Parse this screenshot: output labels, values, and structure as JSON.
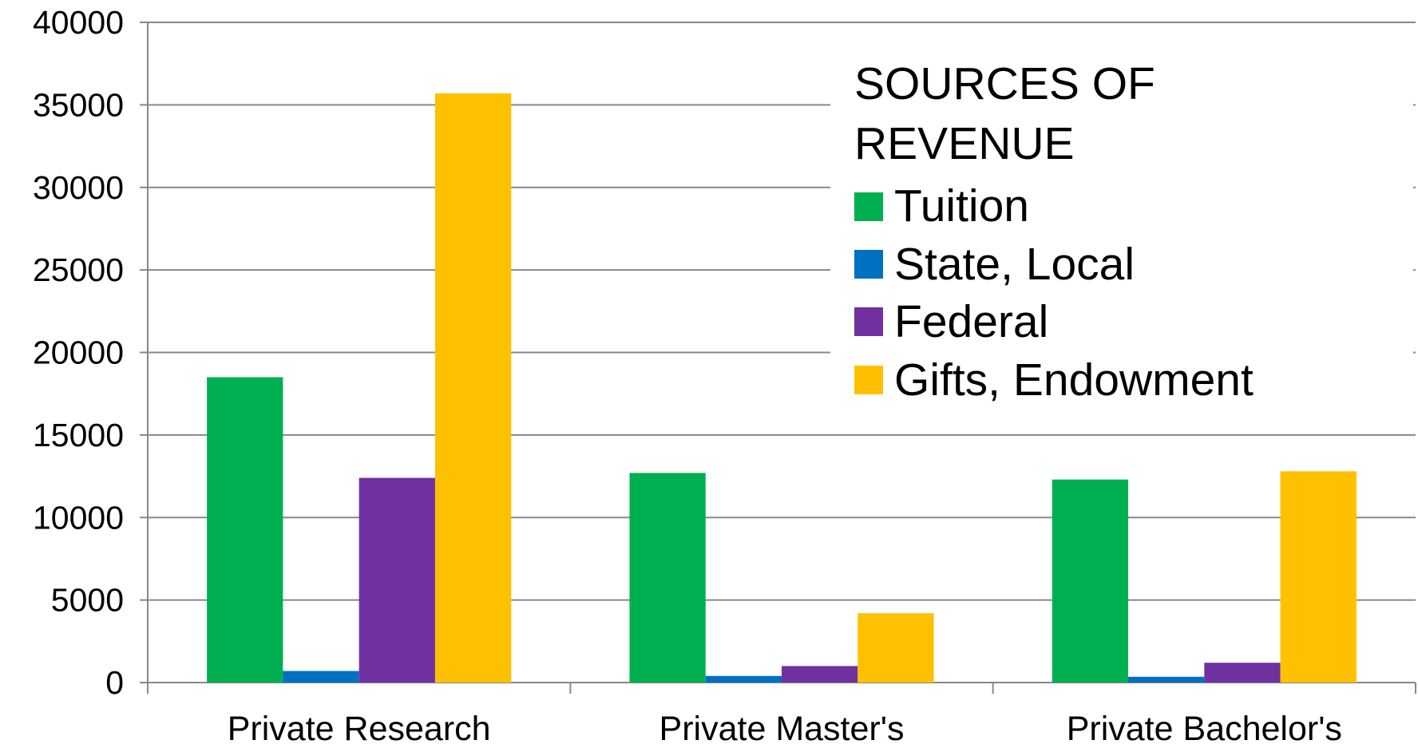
{
  "chart_data": {
    "type": "bar",
    "legend_title": "SOURCES OF REVENUE",
    "categories": [
      "Private Research",
      "Private Master's",
      "Private Bachelor's"
    ],
    "series": [
      {
        "name": "Tuition",
        "color": "#00b050",
        "values": [
          18500,
          12700,
          12300
        ]
      },
      {
        "name": "State, Local",
        "color": "#0070c0",
        "values": [
          700,
          400,
          350
        ]
      },
      {
        "name": "Federal",
        "color": "#7030a0",
        "values": [
          12400,
          1000,
          1200
        ]
      },
      {
        "name": "Gifts, Endowment",
        "color": "#ffc000",
        "values": [
          35700,
          4200,
          12800
        ]
      }
    ],
    "ylim": [
      0,
      40000
    ],
    "yticks": [
      0,
      5000,
      10000,
      15000,
      20000,
      25000,
      30000,
      35000,
      40000
    ],
    "grid": true
  }
}
